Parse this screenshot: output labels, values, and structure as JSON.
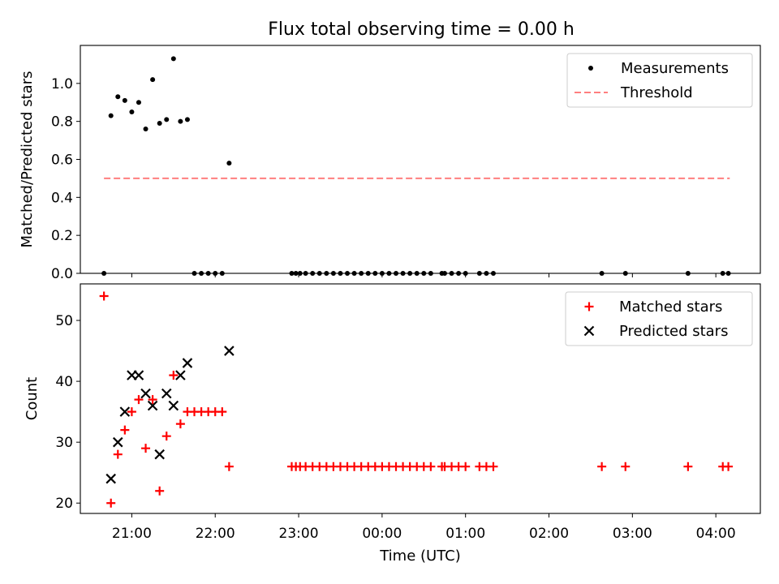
{
  "chart_data": [
    {
      "type": "scatter",
      "title": "Flux total observing time = 0.00 h",
      "xlabel": "",
      "ylabel": "Matched/Predicted stars",
      "xlim": [
        "20:23",
        "04:32"
      ],
      "ylim": [
        0,
        1.2
      ],
      "yticks": [
        "0.0",
        "0.2",
        "0.4",
        "0.6",
        "0.8",
        "1.0"
      ],
      "x_tick_labels_shown": false,
      "legend_position": "top-right",
      "series": [
        {
          "name": "Measurements",
          "kind": "scatter",
          "marker": "dot",
          "color": "#000000",
          "x": [
            "20:40",
            "20:45",
            "20:50",
            "20:55",
            "21:00",
            "21:05",
            "21:10",
            "21:15",
            "21:20",
            "21:25",
            "21:30",
            "21:35",
            "21:40",
            "21:45",
            "21:50",
            "21:55",
            "22:00",
            "22:05",
            "22:10",
            "22:55",
            "22:58",
            "23:01",
            "23:05",
            "23:10",
            "23:15",
            "23:20",
            "23:25",
            "23:30",
            "23:35",
            "23:40",
            "23:45",
            "23:50",
            "23:55",
            "00:00",
            "00:05",
            "00:10",
            "00:15",
            "00:20",
            "00:25",
            "00:30",
            "00:35",
            "00:43",
            "00:45",
            "00:50",
            "00:55",
            "01:00",
            "01:10",
            "01:15",
            "01:20",
            "02:38",
            "02:55",
            "03:40",
            "04:05",
            "04:09"
          ],
          "y": [
            0.0,
            0.83,
            0.93,
            0.91,
            0.85,
            0.9,
            0.76,
            1.02,
            0.79,
            0.81,
            1.13,
            0.8,
            0.81,
            0.0,
            0.0,
            0.0,
            0.0,
            0.0,
            0.58,
            0.0,
            0.0,
            0.0,
            0.0,
            0.0,
            0.0,
            0.0,
            0.0,
            0.0,
            0.0,
            0.0,
            0.0,
            0.0,
            0.0,
            0.0,
            0.0,
            0.0,
            0.0,
            0.0,
            0.0,
            0.0,
            0.0,
            0.0,
            0.0,
            0.0,
            0.0,
            0.0,
            0.0,
            0.0,
            0.0,
            0.0,
            0.0,
            0.0,
            0.0,
            0.0
          ]
        },
        {
          "name": "Threshold",
          "kind": "line",
          "style": "dashed",
          "color": "#ff7f7f",
          "x": [
            "20:40",
            "04:10"
          ],
          "y": [
            0.5,
            0.5
          ]
        }
      ]
    },
    {
      "type": "scatter",
      "title": "",
      "xlabel": "Time (UTC)",
      "ylabel": "Count",
      "xlim": [
        "20:23",
        "04:32"
      ],
      "ylim": [
        18.3,
        56
      ],
      "xticks": [
        "21:00",
        "22:00",
        "23:00",
        "00:00",
        "01:00",
        "02:00",
        "03:00",
        "04:00"
      ],
      "yticks": [
        "20",
        "30",
        "40",
        "50"
      ],
      "legend_position": "top-right",
      "series": [
        {
          "name": "Matched stars",
          "kind": "scatter",
          "marker": "plus",
          "color": "#ff0000",
          "x": [
            "20:40",
            "20:45",
            "20:50",
            "20:55",
            "21:00",
            "21:05",
            "21:10",
            "21:15",
            "21:20",
            "21:25",
            "21:30",
            "21:35",
            "21:40",
            "21:45",
            "21:50",
            "21:55",
            "22:00",
            "22:05",
            "22:10",
            "22:55",
            "22:58",
            "23:01",
            "23:05",
            "23:10",
            "23:15",
            "23:20",
            "23:25",
            "23:30",
            "23:35",
            "23:40",
            "23:45",
            "23:50",
            "23:55",
            "00:00",
            "00:05",
            "00:10",
            "00:15",
            "00:20",
            "00:25",
            "00:30",
            "00:35",
            "00:43",
            "00:45",
            "00:50",
            "00:55",
            "01:00",
            "01:10",
            "01:15",
            "01:20",
            "02:38",
            "02:55",
            "03:40",
            "04:05",
            "04:09"
          ],
          "y": [
            54,
            20,
            28,
            32,
            35,
            37,
            29,
            37,
            22,
            31,
            41,
            33,
            35,
            35,
            35,
            35,
            35,
            35,
            26,
            26,
            26,
            26,
            26,
            26,
            26,
            26,
            26,
            26,
            26,
            26,
            26,
            26,
            26,
            26,
            26,
            26,
            26,
            26,
            26,
            26,
            26,
            26,
            26,
            26,
            26,
            26,
            26,
            26,
            26,
            26,
            26,
            26,
            26,
            26
          ]
        },
        {
          "name": "Predicted stars",
          "kind": "scatter",
          "marker": "x",
          "color": "#000000",
          "x": [
            "20:45",
            "20:50",
            "20:55",
            "21:00",
            "21:05",
            "21:10",
            "21:15",
            "21:20",
            "21:25",
            "21:30",
            "21:35",
            "21:40",
            "22:10"
          ],
          "y": [
            24,
            30,
            35,
            41,
            41,
            38,
            36,
            28,
            38,
            36,
            41,
            43,
            45
          ]
        }
      ]
    }
  ]
}
